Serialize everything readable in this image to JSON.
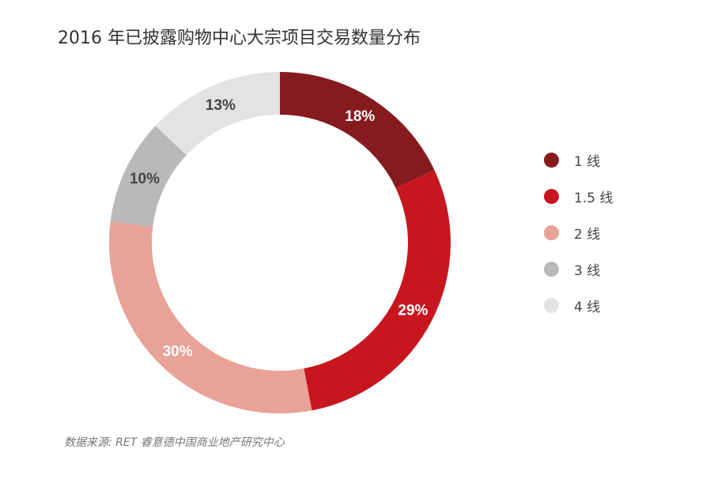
{
  "chart_data": {
    "type": "pie",
    "style": "donut",
    "title": "2016 年已披露购物中心大宗项目交易数量分布",
    "categories": [
      "1 线",
      "1.5 线",
      "2 线",
      "3 线",
      "4 线"
    ],
    "values": [
      18,
      29,
      30,
      10,
      13
    ],
    "value_labels": [
      "18%",
      "29%",
      "30%",
      "10%",
      "13%"
    ],
    "colors": [
      "#861b1f",
      "#c8161f",
      "#e8a297",
      "#b9b9b9",
      "#e3e3e3"
    ],
    "legend_position": "right",
    "start_angle": "top",
    "direction": "clockwise"
  },
  "source": "数据来源: RET 睿意德中国商业地产研究中心"
}
